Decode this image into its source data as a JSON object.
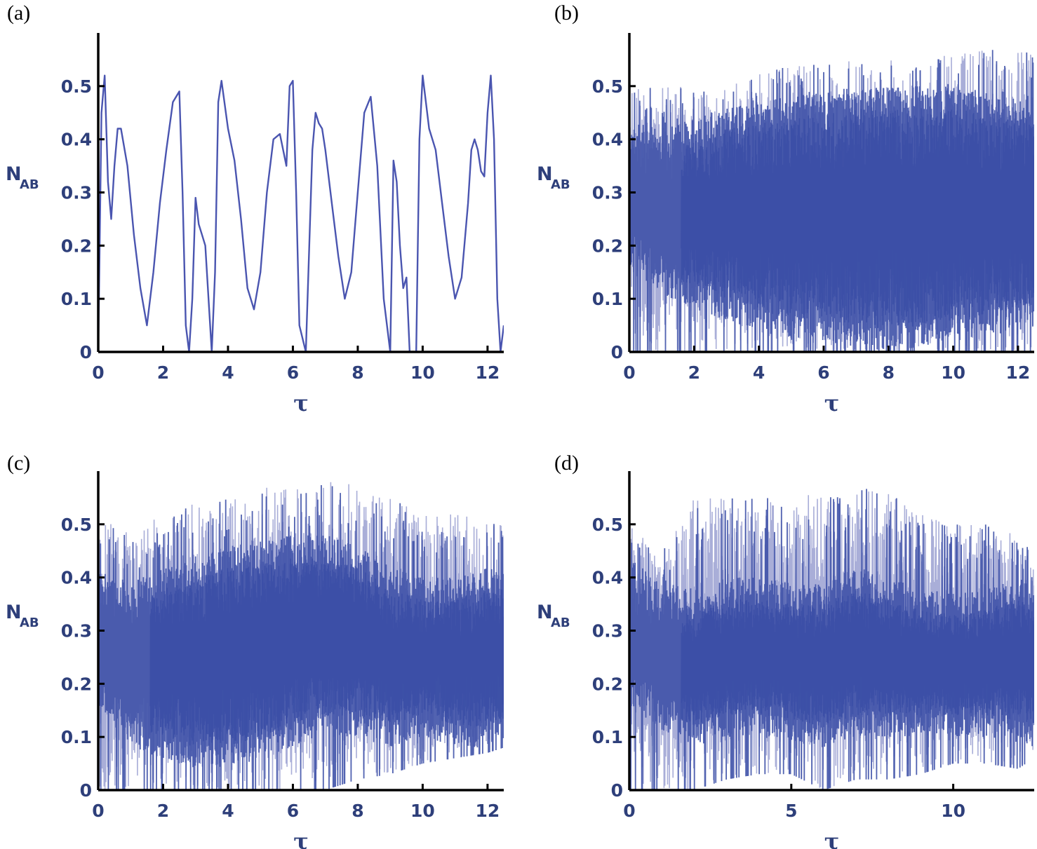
{
  "chart_data": [
    {
      "type": "line",
      "panel_label": "(a)",
      "xlabel": "τ",
      "ylabel": "N",
      "ylabel_sub": "AB",
      "xlim": [
        0,
        12.5
      ],
      "ylim": [
        0,
        0.6
      ],
      "xticks": [
        0,
        2,
        4,
        6,
        8,
        10,
        12
      ],
      "xtick_labels": [
        "0",
        "2",
        "4",
        "6",
        "8",
        "10",
        "12"
      ],
      "yticks": [
        0,
        0.1,
        0.2,
        0.3,
        0.4,
        0.5
      ],
      "ytick_labels": [
        "0",
        "0.1",
        "0.2",
        "0.3",
        "0.4",
        "0.5"
      ],
      "series_color": "#4a55b0",
      "x": [
        0,
        0.1,
        0.2,
        0.3,
        0.4,
        0.5,
        0.6,
        0.7,
        0.9,
        1.1,
        1.3,
        1.5,
        1.6,
        1.7,
        1.9,
        2.1,
        2.3,
        2.5,
        2.6,
        2.7,
        2.8,
        2.9,
        3.0,
        3.1,
        3.2,
        3.3,
        3.5,
        3.6,
        3.7,
        3.8,
        4.0,
        4.2,
        4.4,
        4.6,
        4.8,
        5.0,
        5.2,
        5.4,
        5.6,
        5.8,
        5.9,
        6.0,
        6.1,
        6.2,
        6.4,
        6.6,
        6.7,
        6.8,
        6.9,
        7.0,
        7.2,
        7.4,
        7.6,
        7.8,
        8.0,
        8.2,
        8.4,
        8.6,
        8.8,
        9.0,
        9.1,
        9.2,
        9.3,
        9.4,
        9.5,
        9.6,
        9.8,
        9.9,
        10.0,
        10.2,
        10.4,
        10.6,
        10.8,
        11.0,
        11.2,
        11.4,
        11.5,
        11.6,
        11.7,
        11.8,
        11.9,
        12.0,
        12.1,
        12.2,
        12.3,
        12.4,
        12.5
      ],
      "y": [
        0,
        0.45,
        0.52,
        0.32,
        0.25,
        0.35,
        0.42,
        0.42,
        0.35,
        0.22,
        0.12,
        0.05,
        0.1,
        0.15,
        0.28,
        0.38,
        0.47,
        0.49,
        0.3,
        0.05,
        0,
        0.1,
        0.29,
        0.24,
        0.22,
        0.2,
        0,
        0.15,
        0.47,
        0.51,
        0.42,
        0.36,
        0.25,
        0.12,
        0.08,
        0.15,
        0.3,
        0.4,
        0.41,
        0.35,
        0.5,
        0.51,
        0.3,
        0.05,
        0,
        0.38,
        0.45,
        0.43,
        0.42,
        0.38,
        0.28,
        0.18,
        0.1,
        0.15,
        0.3,
        0.45,
        0.48,
        0.35,
        0.1,
        0,
        0.36,
        0.32,
        0.2,
        0.12,
        0.14,
        0,
        0,
        0.4,
        0.52,
        0.42,
        0.38,
        0.28,
        0.18,
        0.1,
        0.14,
        0.28,
        0.38,
        0.4,
        0.38,
        0.34,
        0.33,
        0.45,
        0.52,
        0.4,
        0.1,
        0,
        0.05
      ]
    },
    {
      "type": "line",
      "panel_label": "(b)",
      "xlabel": "τ",
      "ylabel": "N",
      "ylabel_sub": "AB",
      "xlim": [
        0,
        12.5
      ],
      "ylim": [
        0,
        0.6
      ],
      "xticks": [
        0,
        2,
        4,
        6,
        8,
        10,
        12
      ],
      "xtick_labels": [
        "0",
        "2",
        "4",
        "6",
        "8",
        "10",
        "12"
      ],
      "yticks": [
        0,
        0.1,
        0.2,
        0.3,
        0.4,
        0.5
      ],
      "ytick_labels": [
        "0",
        "0.1",
        "0.2",
        "0.3",
        "0.4",
        "0.5"
      ],
      "series_color": "#3f52a8",
      "band": {
        "x": [
          0,
          1,
          2,
          3,
          4,
          5,
          6,
          7,
          8,
          9,
          10,
          11,
          12,
          12.5
        ],
        "upper": [
          0.52,
          0.5,
          0.5,
          0.5,
          0.53,
          0.54,
          0.54,
          0.55,
          0.55,
          0.55,
          0.56,
          0.57,
          0.57,
          0.56
        ],
        "lower": [
          0,
          0,
          0,
          0,
          0,
          0,
          0,
          0,
          0,
          0,
          0,
          0,
          0,
          0
        ],
        "core_upper": [
          0.4,
          0.38,
          0.4,
          0.42,
          0.43,
          0.44,
          0.45,
          0.46,
          0.46,
          0.46,
          0.46,
          0.45,
          0.45,
          0.44
        ],
        "core_lower": [
          0.2,
          0.15,
          0.12,
          0.1,
          0.08,
          0.06,
          0.06,
          0.05,
          0.04,
          0.05,
          0.06,
          0.07,
          0.08,
          0.08
        ]
      }
    },
    {
      "type": "line",
      "panel_label": "(c)",
      "xlabel": "τ",
      "ylabel": "N",
      "ylabel_sub": "AB",
      "xlim": [
        0,
        12.5
      ],
      "ylim": [
        0,
        0.6
      ],
      "xticks": [
        0,
        2,
        4,
        6,
        8,
        10,
        12
      ],
      "xtick_labels": [
        "0",
        "2",
        "4",
        "6",
        "8",
        "10",
        "12"
      ],
      "yticks": [
        0,
        0.1,
        0.2,
        0.3,
        0.4,
        0.5
      ],
      "ytick_labels": [
        "0",
        "0.1",
        "0.2",
        "0.3",
        "0.4",
        "0.5"
      ],
      "series_color": "#3f52a8",
      "band": {
        "x": [
          0,
          1,
          2,
          3,
          4,
          5,
          6,
          7,
          8,
          9,
          10,
          11,
          12,
          12.5
        ],
        "upper": [
          0.52,
          0.48,
          0.52,
          0.54,
          0.55,
          0.57,
          0.58,
          0.58,
          0.58,
          0.55,
          0.52,
          0.52,
          0.51,
          0.5
        ],
        "lower": [
          0,
          0,
          0,
          0,
          0,
          0,
          0,
          0,
          0.02,
          0.03,
          0.05,
          0.06,
          0.07,
          0.08
        ],
        "core_upper": [
          0.38,
          0.35,
          0.38,
          0.4,
          0.42,
          0.43,
          0.44,
          0.44,
          0.42,
          0.38,
          0.36,
          0.36,
          0.38,
          0.38
        ],
        "core_lower": [
          0.2,
          0.12,
          0.1,
          0.08,
          0.08,
          0.1,
          0.12,
          0.14,
          0.14,
          0.12,
          0.14,
          0.12,
          0.12,
          0.12
        ]
      }
    },
    {
      "type": "line",
      "panel_label": "(d)",
      "xlabel": "τ",
      "ylabel": "N",
      "ylabel_sub": "AB",
      "xlim": [
        0,
        12.5
      ],
      "ylim": [
        0,
        0.6
      ],
      "xticks": [
        0,
        5,
        10
      ],
      "xtick_labels": [
        "0",
        "5",
        "10"
      ],
      "yticks": [
        0,
        0.1,
        0.2,
        0.3,
        0.4,
        0.5
      ],
      "ytick_labels": [
        "0",
        "0.1",
        "0.2",
        "0.3",
        "0.4",
        "0.5"
      ],
      "series_color": "#3f52a8",
      "band": {
        "x": [
          0,
          1,
          2,
          3,
          4,
          5,
          6,
          7,
          8,
          9,
          10,
          11,
          12,
          12.5
        ],
        "upper": [
          0.5,
          0.45,
          0.55,
          0.55,
          0.55,
          0.55,
          0.56,
          0.58,
          0.56,
          0.52,
          0.5,
          0.5,
          0.48,
          0.45
        ],
        "lower": [
          0,
          0,
          0,
          0.02,
          0.03,
          0.03,
          0,
          0.02,
          0.02,
          0.03,
          0.05,
          0.05,
          0.04,
          0.06
        ],
        "core_upper": [
          0.4,
          0.35,
          0.34,
          0.36,
          0.36,
          0.35,
          0.35,
          0.38,
          0.36,
          0.34,
          0.33,
          0.34,
          0.36,
          0.34
        ],
        "core_lower": [
          0.2,
          0.15,
          0.12,
          0.14,
          0.14,
          0.13,
          0.12,
          0.14,
          0.14,
          0.14,
          0.14,
          0.14,
          0.13,
          0.12
        ]
      }
    }
  ]
}
